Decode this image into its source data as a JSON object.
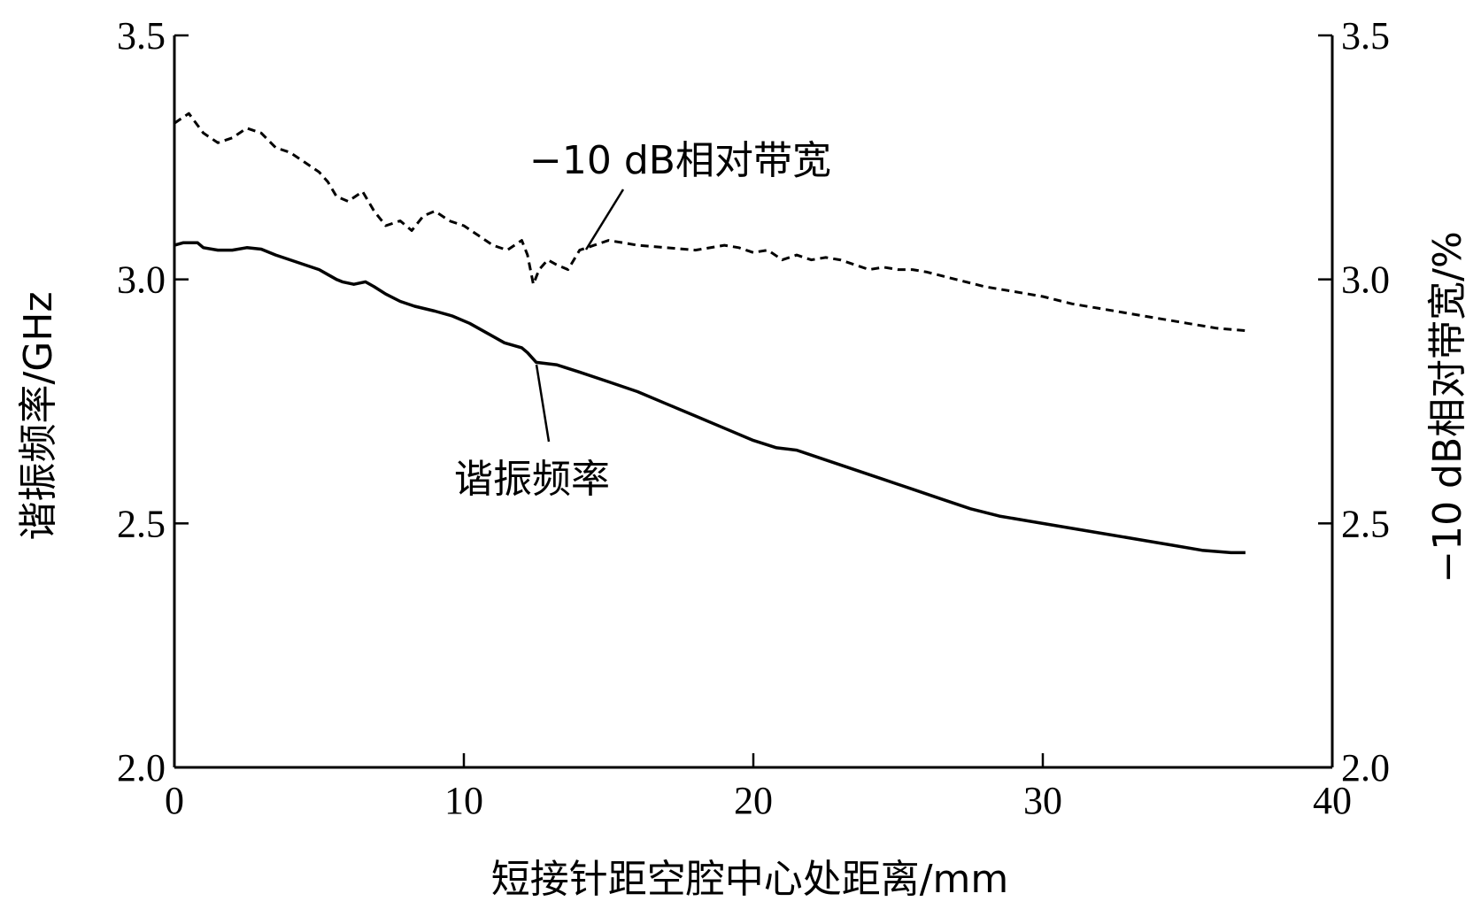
{
  "chart_data": {
    "type": "line",
    "xlabel": "短接针距空腔中心处距离/mm",
    "ylabel_left": "谐振频率/GHz",
    "ylabel_right": "−10 dB相对带宽/%",
    "xlim": [
      0,
      40
    ],
    "ylim_left": [
      2.0,
      3.5
    ],
    "ylim_right": [
      2.0,
      3.5
    ],
    "x_ticks": [
      "0",
      "10",
      "20",
      "30",
      "40"
    ],
    "y_ticks_left": [
      "2.0",
      "2.5",
      "3.0",
      "3.5"
    ],
    "y_ticks_right": [
      "2.0",
      "2.5",
      "3.0",
      "3.5"
    ],
    "grid": false,
    "annotations": [
      {
        "text": "−10 dB相对带宽",
        "series": "bandwidth"
      },
      {
        "text": "谐振频率",
        "series": "frequency"
      }
    ],
    "series": [
      {
        "name": "谐振频率",
        "style": "solid",
        "color": "#000000",
        "axis": "left",
        "x": [
          0.0,
          0.3,
          0.8,
          1.0,
          1.5,
          2.0,
          2.5,
          3.0,
          3.5,
          4.0,
          4.5,
          5.0,
          5.3,
          5.6,
          5.8,
          6.2,
          6.6,
          6.9,
          7.3,
          7.8,
          8.3,
          9.0,
          9.6,
          10.2,
          10.8,
          11.4,
          12.0,
          12.2,
          12.5,
          13.2,
          14.0,
          15.0,
          16.0,
          17.0,
          18.0,
          19.0,
          20.0,
          20.8,
          21.5,
          22.5,
          23.5,
          24.5,
          25.5,
          26.5,
          27.5,
          28.5,
          29.5,
          30.5,
          31.5,
          32.5,
          33.5,
          34.5,
          35.5,
          36.5,
          37.0
        ],
        "values": [
          3.07,
          3.075,
          3.075,
          3.065,
          3.06,
          3.06,
          3.065,
          3.062,
          3.05,
          3.04,
          3.03,
          3.02,
          3.01,
          3.0,
          2.995,
          2.99,
          2.995,
          2.985,
          2.97,
          2.955,
          2.945,
          2.935,
          2.925,
          2.91,
          2.89,
          2.87,
          2.86,
          2.85,
          2.83,
          2.825,
          2.81,
          2.79,
          2.77,
          2.745,
          2.72,
          2.695,
          2.67,
          2.655,
          2.65,
          2.63,
          2.61,
          2.59,
          2.57,
          2.55,
          2.53,
          2.515,
          2.505,
          2.495,
          2.485,
          2.475,
          2.465,
          2.455,
          2.445,
          2.44,
          2.44
        ]
      },
      {
        "name": "−10 dB相对带宽",
        "style": "dashed",
        "color": "#000000",
        "axis": "right",
        "x": [
          0.0,
          0.5,
          1.0,
          1.5,
          2.0,
          2.5,
          3.0,
          3.5,
          4.0,
          4.5,
          5.0,
          5.3,
          5.6,
          6.0,
          6.5,
          6.9,
          7.3,
          7.8,
          8.2,
          8.6,
          9.0,
          9.5,
          10.0,
          10.5,
          11.0,
          11.5,
          12.0,
          12.2,
          12.4,
          12.6,
          12.9,
          13.2,
          13.6,
          14.0,
          14.5,
          15.0,
          15.5,
          16.0,
          17.0,
          18.0,
          19.0,
          19.5,
          20.0,
          20.5,
          21.0,
          21.5,
          22.0,
          22.5,
          23.0,
          23.5,
          24.0,
          24.5,
          25.0,
          25.5,
          26.0,
          27.0,
          28.0,
          29.0,
          30.0,
          31.0,
          32.0,
          33.0,
          34.0,
          35.0,
          36.0,
          37.0
        ],
        "values": [
          3.32,
          3.34,
          3.3,
          3.28,
          3.29,
          3.31,
          3.3,
          3.27,
          3.26,
          3.24,
          3.22,
          3.2,
          3.17,
          3.16,
          3.18,
          3.14,
          3.11,
          3.12,
          3.1,
          3.13,
          3.14,
          3.12,
          3.11,
          3.09,
          3.07,
          3.06,
          3.08,
          3.05,
          2.99,
          3.02,
          3.04,
          3.03,
          3.02,
          3.06,
          3.07,
          3.08,
          3.075,
          3.07,
          3.065,
          3.06,
          3.07,
          3.065,
          3.055,
          3.06,
          3.04,
          3.05,
          3.04,
          3.045,
          3.04,
          3.03,
          3.02,
          3.025,
          3.02,
          3.02,
          3.015,
          3.0,
          2.985,
          2.975,
          2.965,
          2.95,
          2.94,
          2.93,
          2.92,
          2.91,
          2.9,
          2.895
        ]
      }
    ]
  }
}
